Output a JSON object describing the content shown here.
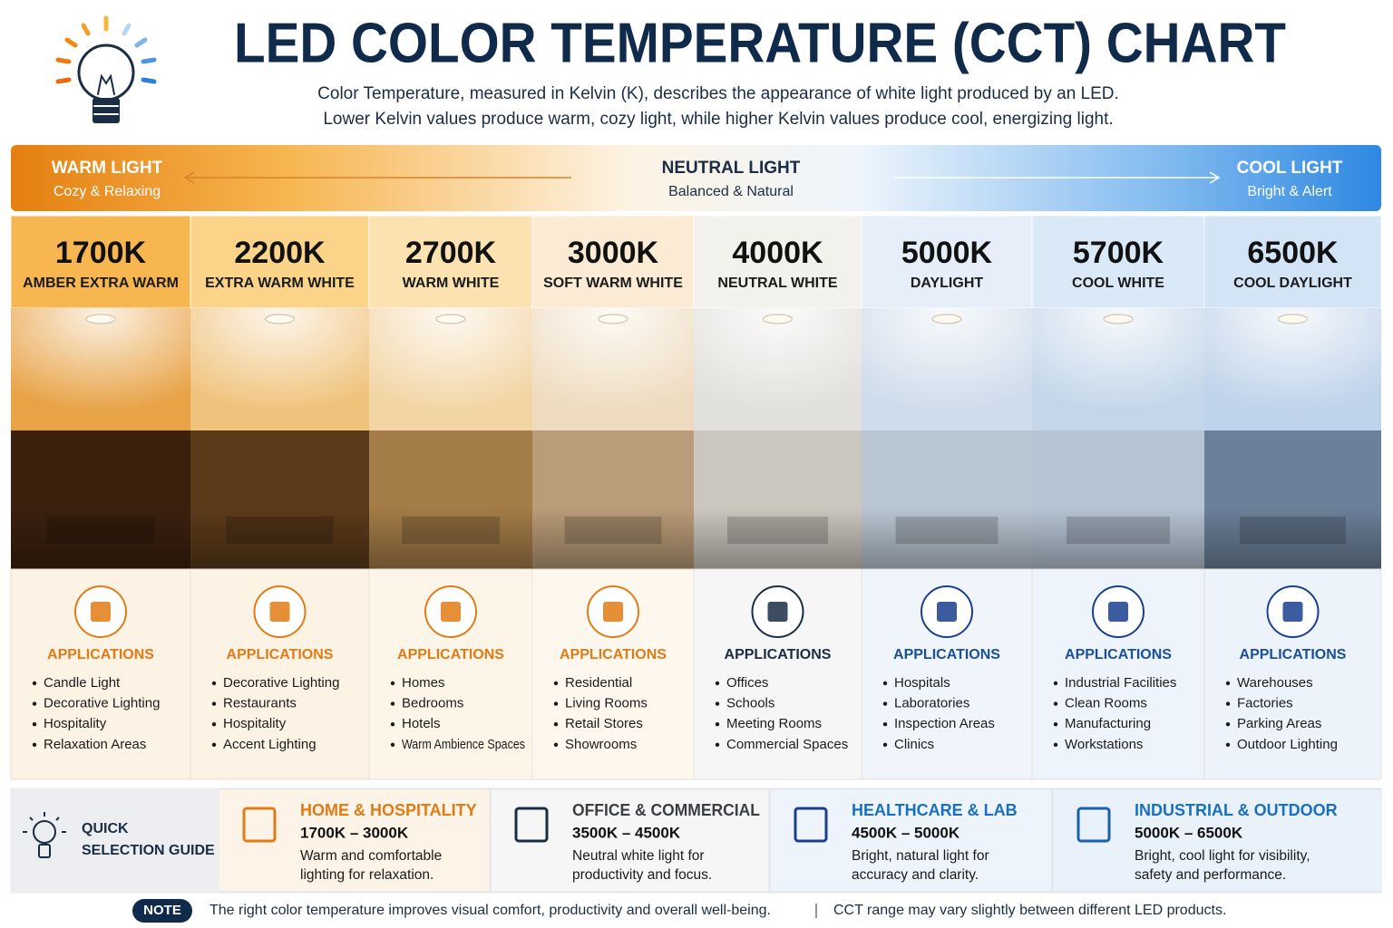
{
  "header": {
    "title": "LED COLOR TEMPERATURE (CCT) CHART",
    "subtitle": [
      "Color Temperature, measured in Kelvin (K), describes the appearance of white light produced by an LED.",
      "Lower Kelvin values produce warm, cozy light, while higher Kelvin values produce cool, energizing light."
    ]
  },
  "scale": {
    "warm": {
      "title": "WARM LIGHT",
      "subtitle": "Cozy & Relaxing"
    },
    "neutral": {
      "title": "NEUTRAL LIGHT",
      "subtitle": "Balanced & Natural"
    },
    "cool": {
      "title": "COOL LIGHT",
      "subtitle": "Bright & Alert"
    }
  },
  "columns": [
    {
      "cct": "1700K",
      "name": "AMBER EXTRA WARM",
      "applications_title": "APPLICATIONS",
      "applications": [
        "Candle Light",
        "Decorative Lighting",
        "Hospitality",
        "Relaxation Areas"
      ]
    },
    {
      "cct": "2200K",
      "name": "EXTRA WARM WHITE",
      "applications_title": "APPLICATIONS",
      "applications": [
        "Decorative Lighting",
        "Restaurants",
        "Hospitality",
        "Accent Lighting"
      ]
    },
    {
      "cct": "2700K",
      "name": "WARM WHITE",
      "applications_title": "APPLICATIONS",
      "applications": [
        "Homes",
        "Bedrooms",
        "Hotels",
        "Warm Ambience Spaces"
      ]
    },
    {
      "cct": "3000K",
      "name": "SOFT WARM WHITE",
      "applications_title": "APPLICATIONS",
      "applications": [
        "Residential",
        "Living Rooms",
        "Retail Stores",
        "Showrooms"
      ]
    },
    {
      "cct": "4000K",
      "name": "NEUTRAL WHITE",
      "applications_title": "APPLICATIONS",
      "applications": [
        "Offices",
        "Schools",
        "Meeting Rooms",
        "Commercial Spaces"
      ]
    },
    {
      "cct": "5000K",
      "name": "DAYLIGHT",
      "applications_title": "APPLICATIONS",
      "applications": [
        "Hospitals",
        "Laboratories",
        "Inspection Areas",
        "Clinics"
      ]
    },
    {
      "cct": "5700K",
      "name": "COOL WHITE",
      "applications_title": "APPLICATIONS",
      "applications": [
        "Industrial Facilities",
        "Clean Rooms",
        "Manufacturing",
        "Workstations"
      ]
    },
    {
      "cct": "6500K",
      "name": "COOL DAYLIGHT",
      "applications_title": "APPLICATIONS",
      "applications": [
        "Warehouses",
        "Factories",
        "Parking Areas",
        "Outdoor Lighting"
      ]
    }
  ],
  "quick_guide": {
    "title_lines": [
      "QUICK",
      "SELECTION GUIDE"
    ],
    "items": [
      {
        "title": "HOME & HOSPITALITY",
        "range": "1700K – 3000K",
        "description": [
          "Warm and comfortable",
          "lighting for relaxation."
        ]
      },
      {
        "title": "OFFICE & COMMERCIAL",
        "range": "3500K – 4500K",
        "description": [
          "Neutral white light for",
          "productivity and focus."
        ]
      },
      {
        "title": "HEALTHCARE & LAB",
        "range": "4500K – 5000K",
        "description": [
          "Bright, natural light for",
          "accuracy and clarity."
        ]
      },
      {
        "title": "INDUSTRIAL & OUTDOOR",
        "range": "5000K – 6500K",
        "description": [
          "Bright, cool light for visibility,",
          "safety and performance."
        ]
      }
    ]
  },
  "note": {
    "label": "NOTE",
    "items": [
      "The right color temperature improves visual comfort, productivity and overall well-being.",
      "CCT range may vary slightly between different LED products."
    ]
  }
}
